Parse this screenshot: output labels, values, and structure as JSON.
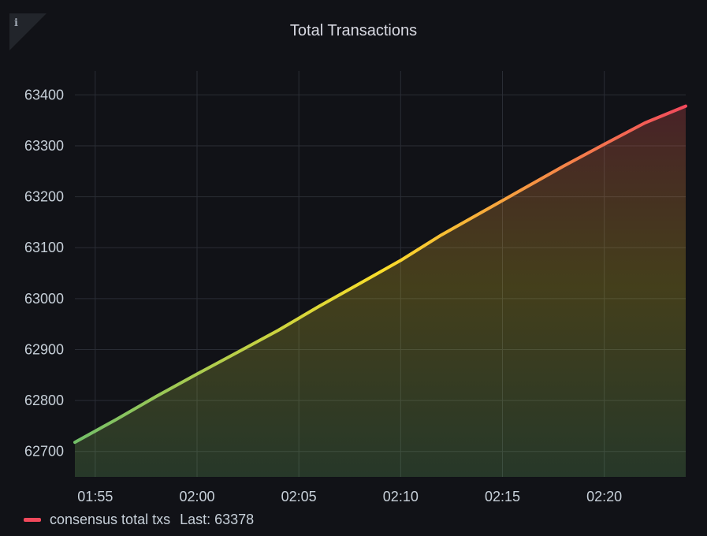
{
  "panel": {
    "title": "Total Transactions",
    "info_icon": "info-icon",
    "info_glyph": "i"
  },
  "chart_data": {
    "type": "area",
    "title": "Total Transactions",
    "xlabel": "",
    "ylabel": "",
    "x_ticks": [
      "01:55",
      "02:00",
      "02:05",
      "02:10",
      "02:15",
      "02:20"
    ],
    "y_ticks": [
      62700,
      62800,
      62900,
      63000,
      63100,
      63200,
      63300,
      63400
    ],
    "xlim": [
      "01:54",
      "02:24"
    ],
    "ylim": [
      62650,
      63447
    ],
    "grid": true,
    "legend_position": "bottom-left",
    "gradient_colors": [
      "#73bf69",
      "#fade2a",
      "#f2495c"
    ],
    "series": [
      {
        "name": "consensus total txs",
        "color": "#f2495c",
        "x": [
          "01:54",
          "01:56",
          "01:58",
          "02:00",
          "02:02",
          "02:04",
          "02:06",
          "02:08",
          "02:10",
          "02:12",
          "02:14",
          "02:16",
          "02:18",
          "02:20",
          "02:22",
          "02:24"
        ],
        "values": [
          62718,
          62762,
          62808,
          62852,
          62895,
          62938,
          62985,
          63030,
          63075,
          63125,
          63170,
          63215,
          63260,
          63303,
          63345,
          63378
        ]
      }
    ]
  },
  "legend": {
    "label": "consensus total txs",
    "last_label": "Last: 63378"
  }
}
